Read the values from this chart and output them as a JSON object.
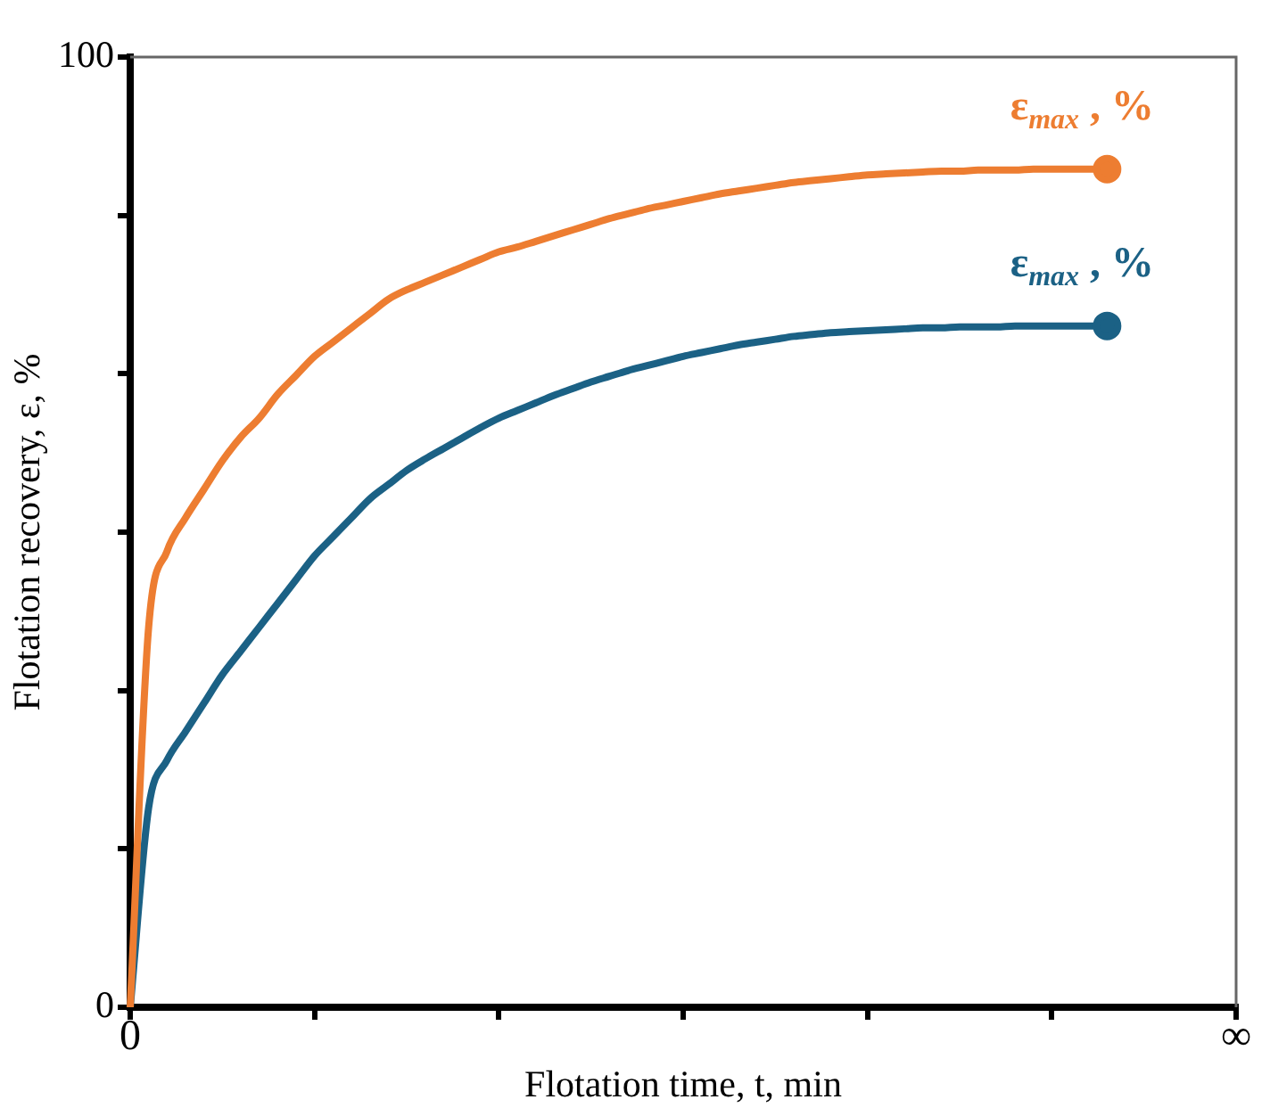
{
  "chart_data": {
    "type": "line",
    "xlabel": "Flotation time, t, min",
    "ylabel": "Flotation recovery, ε, %",
    "categories": [
      "0",
      null,
      null,
      null,
      null,
      null,
      null,
      null,
      null,
      null,
      null,
      null,
      null,
      null,
      null,
      null,
      null,
      null,
      null,
      null,
      null,
      null,
      null,
      null,
      null,
      null,
      null,
      null,
      null,
      null,
      null,
      null,
      null,
      null,
      null,
      null,
      null,
      null,
      null,
      null,
      null,
      null,
      null,
      null,
      null,
      null,
      null,
      null,
      null,
      null,
      null,
      null,
      null,
      null,
      null,
      null,
      null,
      null,
      null,
      null,
      "∞"
    ],
    "ylim": [
      0,
      100
    ],
    "yticks": [
      0,
      {
        "value": 16.67,
        "label": null
      },
      {
        "value": 33.33,
        "label": null
      },
      {
        "value": 50,
        "label": null
      },
      {
        "value": 66.67,
        "label": null
      },
      {
        "value": 83.33,
        "label": null
      },
      100
    ],
    "grid": false,
    "legend": false,
    "series": [
      {
        "color": "#ed7d31",
        "values": [
          0,
          40,
          48,
          51.5,
          54.5,
          57.5,
          60,
          62,
          64.5,
          66.5,
          68.5,
          70,
          71.5,
          73,
          74.5,
          75.5,
          76.3,
          77.1,
          77.9,
          78.7,
          79.5,
          80,
          80.6,
          81.2,
          81.8,
          82.4,
          83,
          83.5,
          84,
          84.4,
          84.8,
          85.2,
          85.6,
          85.9,
          86.2,
          86.5,
          86.8,
          87,
          87.2,
          87.4,
          87.6,
          87.7,
          87.8,
          87.9,
          88,
          88,
          88.1,
          88.1,
          88.1,
          88.2,
          88.2,
          88.2,
          88.2,
          88.2,
          null,
          null,
          null,
          null,
          null,
          null,
          null
        ]
      },
      {
        "color": "#1b6185",
        "values": [
          0,
          21,
          26,
          29,
          32,
          35,
          37.5,
          40,
          42.5,
          45,
          47.5,
          49.5,
          51.5,
          53.5,
          55,
          56.5,
          57.7,
          58.8,
          59.9,
          61,
          62,
          62.8,
          63.6,
          64.4,
          65.1,
          65.8,
          66.4,
          67,
          67.5,
          68,
          68.5,
          68.9,
          69.3,
          69.7,
          70,
          70.3,
          70.6,
          70.8,
          71,
          71.1,
          71.2,
          71.3,
          71.4,
          71.5,
          71.5,
          71.6,
          71.6,
          71.6,
          71.7,
          71.7,
          71.7,
          71.7,
          71.7,
          71.7,
          null,
          null,
          null,
          null,
          null,
          null,
          null
        ]
      }
    ],
    "annotations": [
      {
        "text": "ε$_{max}$ , %",
        "y": 88.2
      },
      {
        "text": "ε$_{max}$ , %",
        "y": 71.7
      }
    ]
  }
}
